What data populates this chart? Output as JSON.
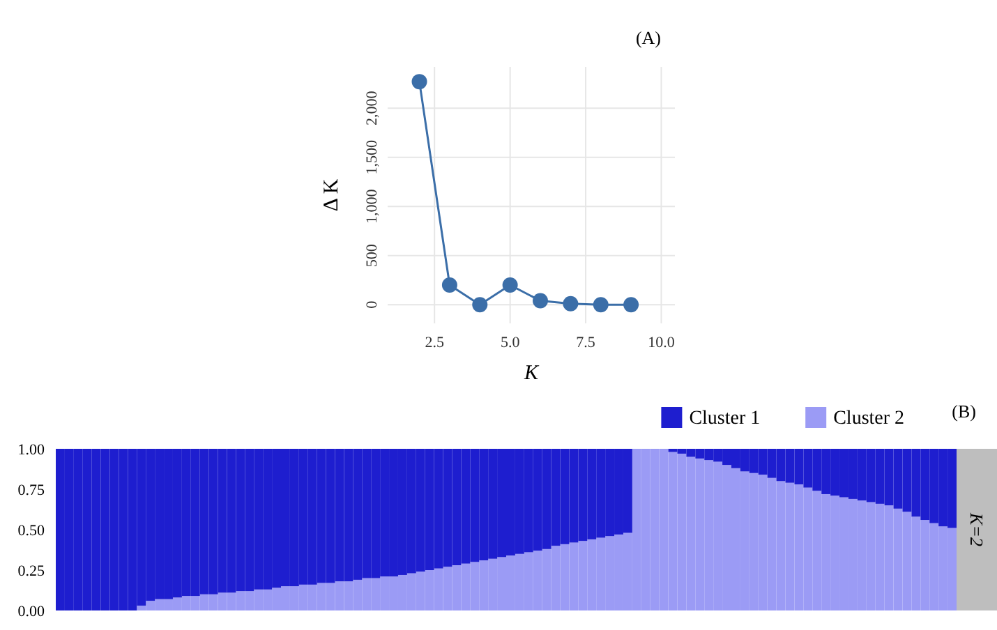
{
  "chart_data": [
    {
      "type": "line",
      "title": "(A)",
      "xlabel": "K",
      "ylabel": "Δ K",
      "x": [
        2,
        3,
        4,
        5,
        6,
        7,
        8,
        9
      ],
      "series": [
        {
          "color": "#3b6ea8",
          "values": [
            2270,
            200,
            0,
            200,
            40,
            10,
            0,
            0
          ]
        }
      ],
      "xlim": [
        0.95,
        10.45
      ],
      "ylim": [
        -190,
        2420
      ],
      "xticks": [
        2.5,
        {
          "value": 5,
          "label": "5.0"
        },
        7.5,
        {
          "value": 10,
          "label": "10.0"
        }
      ],
      "yticks": [
        0,
        500,
        {
          "value": 1000,
          "label": "1,000"
        },
        {
          "value": 1500,
          "label": "1,500"
        },
        {
          "value": 2000,
          "label": "2,000"
        }
      ],
      "grid": true,
      "marker": "circle",
      "line_style": "solid"
    },
    {
      "type": "bar",
      "title": "(B)",
      "stacked": true,
      "legend": "top right",
      "tick_labels": "y",
      "annotations": [
        "K=2"
      ],
      "categories": [
        null,
        null,
        null,
        null,
        null,
        null,
        null,
        null,
        null,
        null,
        null,
        null,
        null,
        null,
        null,
        null,
        null,
        null,
        null,
        null,
        null,
        null,
        null,
        null,
        null,
        null,
        null,
        null,
        null,
        null,
        null,
        null,
        null,
        null,
        null,
        null,
        null,
        null,
        null,
        null,
        null,
        null,
        null,
        null,
        null,
        null,
        null,
        null,
        null,
        null,
        null,
        null,
        null,
        null,
        null,
        null,
        null,
        null,
        null,
        null,
        null,
        null,
        null,
        null,
        null,
        null,
        null,
        null,
        null,
        null,
        null,
        null,
        null,
        null,
        null,
        null,
        null,
        null,
        null,
        null,
        null,
        null,
        null,
        null,
        null,
        null,
        null,
        null,
        null,
        null,
        null,
        null,
        null,
        null,
        null,
        null,
        null,
        null,
        null,
        null
      ],
      "ylim": [
        0,
        1
      ],
      "yticks": [
        {
          "value": 0,
          "label": "0.00"
        },
        {
          "value": 0.25,
          "label": "0.25"
        },
        {
          "value": 0.5,
          "label": "0.50"
        },
        {
          "value": 0.75,
          "label": "0.75"
        },
        {
          "value": 1,
          "label": "1.00"
        }
      ],
      "series": [
        {
          "name": "Cluster 2",
          "color": "#9b9bf5",
          "values": [
            0,
            0,
            0,
            0,
            0,
            0,
            0,
            0,
            0,
            0.03,
            0.06,
            0.07,
            0.07,
            0.08,
            0.09,
            0.09,
            0.1,
            0.1,
            0.11,
            0.11,
            0.12,
            0.12,
            0.13,
            0.13,
            0.14,
            0.15,
            0.15,
            0.16,
            0.16,
            0.17,
            0.17,
            0.18,
            0.18,
            0.19,
            0.2,
            0.2,
            0.21,
            0.21,
            0.22,
            0.23,
            0.24,
            0.25,
            0.26,
            0.27,
            0.28,
            0.29,
            0.3,
            0.31,
            0.32,
            0.33,
            0.34,
            0.35,
            0.36,
            0.37,
            0.38,
            0.4,
            0.41,
            0.42,
            0.43,
            0.44,
            0.45,
            0.46,
            0.47,
            0.48,
            1,
            1,
            1,
            1,
            0.98,
            0.97,
            0.95,
            0.94,
            0.93,
            0.92,
            0.9,
            0.88,
            0.86,
            0.85,
            0.84,
            0.82,
            0.8,
            0.79,
            0.78,
            0.76,
            0.74,
            0.72,
            0.71,
            0.7,
            0.69,
            0.68,
            0.67,
            0.66,
            0.65,
            0.63,
            0.61,
            0.58,
            0.56,
            0.54,
            0.52,
            0.51
          ]
        },
        {
          "name": "Cluster 1",
          "color": "#1e1ecf",
          "values": [
            1,
            1,
            1,
            1,
            1,
            1,
            1,
            1,
            1,
            0.97,
            0.94,
            0.93,
            0.93,
            0.92,
            0.91,
            0.91,
            0.9,
            0.9,
            0.89,
            0.89,
            0.88,
            0.88,
            0.87,
            0.87,
            0.86,
            0.85,
            0.85,
            0.84,
            0.84,
            0.83,
            0.83,
            0.82,
            0.82,
            0.81,
            0.8,
            0.8,
            0.79,
            0.79,
            0.78,
            0.77,
            0.76,
            0.75,
            0.74,
            0.73,
            0.72,
            0.71,
            0.7,
            0.69,
            0.68,
            0.67,
            0.66,
            0.65,
            0.64,
            0.63,
            0.62,
            0.6,
            0.59,
            0.58,
            0.57,
            0.56,
            0.55,
            0.54,
            0.53,
            0.52,
            0,
            0,
            0,
            0,
            0.02,
            0.03,
            0.05,
            0.06,
            0.07,
            0.08,
            0.1,
            0.12,
            0.14,
            0.15,
            0.16,
            0.18,
            0.2,
            0.21,
            0.22,
            0.24,
            0.26,
            0.28,
            0.29,
            0.3,
            0.31,
            0.32,
            0.33,
            0.34,
            0.35,
            0.37,
            0.39,
            0.42,
            0.44,
            0.46,
            0.48,
            0.49
          ]
        }
      ]
    }
  ]
}
